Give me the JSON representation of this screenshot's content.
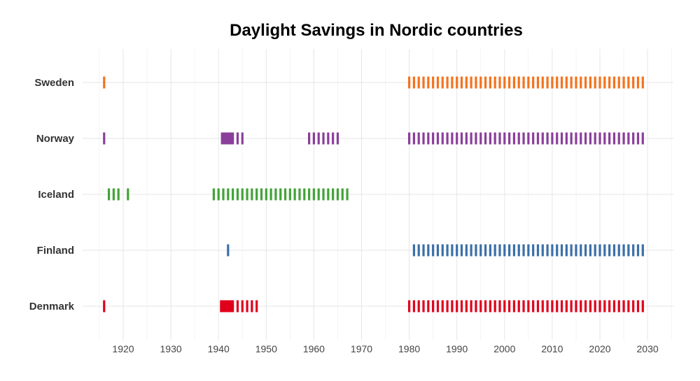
{
  "chart_data": {
    "type": "timeline",
    "title": "Daylight Savings in Nordic countries",
    "xlabel": "",
    "ylabel": "",
    "xlim": [
      1913,
      2035
    ],
    "x_ticks": [
      1920,
      1930,
      1940,
      1950,
      1960,
      1970,
      1980,
      1990,
      2000,
      2010,
      2020,
      2030
    ],
    "grid": true,
    "legend": "none",
    "categories": [
      "Sweden",
      "Norway",
      "Iceland",
      "Finland",
      "Denmark"
    ],
    "series": [
      {
        "name": "Sweden",
        "color": "#f4731f",
        "years": [
          1916,
          1980,
          1981,
          1982,
          1983,
          1984,
          1985,
          1986,
          1987,
          1988,
          1989,
          1990,
          1991,
          1992,
          1993,
          1994,
          1995,
          1996,
          1997,
          1998,
          1999,
          2000,
          2001,
          2002,
          2003,
          2004,
          2005,
          2006,
          2007,
          2008,
          2009,
          2010,
          2011,
          2012,
          2013,
          2014,
          2015,
          2016,
          2017,
          2018,
          2019,
          2020,
          2021,
          2022,
          2023,
          2024,
          2025,
          2026,
          2027,
          2028,
          2029
        ],
        "continuous": []
      },
      {
        "name": "Norway",
        "color": "#8a3f9a",
        "years": [
          1916,
          1943,
          1944,
          1945,
          1959,
          1960,
          1961,
          1962,
          1963,
          1964,
          1965,
          1980,
          1981,
          1982,
          1983,
          1984,
          1985,
          1986,
          1987,
          1988,
          1989,
          1990,
          1991,
          1992,
          1993,
          1994,
          1995,
          1996,
          1997,
          1998,
          1999,
          2000,
          2001,
          2002,
          2003,
          2004,
          2005,
          2006,
          2007,
          2008,
          2009,
          2010,
          2011,
          2012,
          2013,
          2014,
          2015,
          2016,
          2017,
          2018,
          2019,
          2020,
          2021,
          2022,
          2023,
          2024,
          2025,
          2026,
          2027,
          2028,
          2029
        ],
        "continuous": [
          [
            1940.5,
            1942.8
          ]
        ]
      },
      {
        "name": "Iceland",
        "color": "#43a338",
        "years": [
          1917,
          1918,
          1919,
          1921,
          1939,
          1940,
          1941,
          1942,
          1943,
          1944,
          1945,
          1946,
          1947,
          1948,
          1949,
          1950,
          1951,
          1952,
          1953,
          1954,
          1955,
          1956,
          1957,
          1958,
          1959,
          1960,
          1961,
          1962,
          1963,
          1964,
          1965,
          1966,
          1967
        ],
        "continuous": []
      },
      {
        "name": "Finland",
        "color": "#3b6fa8",
        "years": [
          1942,
          1981,
          1982,
          1983,
          1984,
          1985,
          1986,
          1987,
          1988,
          1989,
          1990,
          1991,
          1992,
          1993,
          1994,
          1995,
          1996,
          1997,
          1998,
          1999,
          2000,
          2001,
          2002,
          2003,
          2004,
          2005,
          2006,
          2007,
          2008,
          2009,
          2010,
          2011,
          2012,
          2013,
          2014,
          2015,
          2016,
          2017,
          2018,
          2019,
          2020,
          2021,
          2022,
          2023,
          2024,
          2025,
          2026,
          2027,
          2028,
          2029
        ],
        "continuous": []
      },
      {
        "name": "Denmark",
        "color": "#e0001b",
        "years": [
          1916,
          1943,
          1944,
          1945,
          1946,
          1947,
          1948,
          1980,
          1981,
          1982,
          1983,
          1984,
          1985,
          1986,
          1987,
          1988,
          1989,
          1990,
          1991,
          1992,
          1993,
          1994,
          1995,
          1996,
          1997,
          1998,
          1999,
          2000,
          2001,
          2002,
          2003,
          2004,
          2005,
          2006,
          2007,
          2008,
          2009,
          2010,
          2011,
          2012,
          2013,
          2014,
          2015,
          2016,
          2017,
          2018,
          2019,
          2020,
          2021,
          2022,
          2023,
          2024,
          2025,
          2026,
          2027,
          2028,
          2029
        ],
        "continuous": [
          [
            1940.3,
            1942.8
          ]
        ]
      }
    ]
  }
}
